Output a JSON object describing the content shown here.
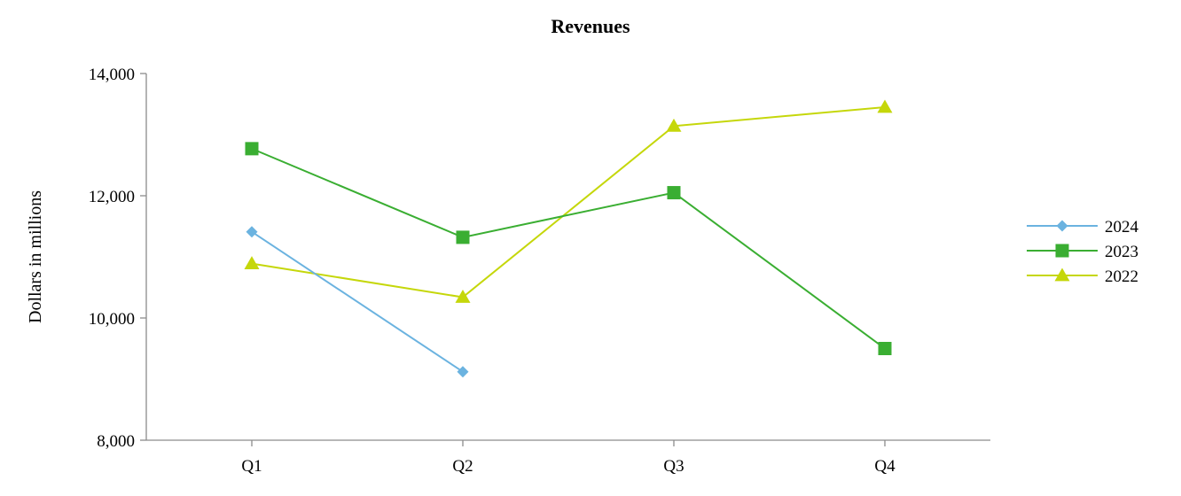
{
  "chart_data": {
    "type": "line",
    "title": "Revenues",
    "xlabel": "",
    "ylabel": "Dollars in millions",
    "categories": [
      "Q1",
      "Q2",
      "Q3",
      "Q4"
    ],
    "ylim": [
      8000,
      14000
    ],
    "yticks": [
      8000,
      10000,
      12000,
      14000
    ],
    "ytick_labels": [
      "8,000",
      "10,000",
      "12,000",
      "14,000"
    ],
    "grid": false,
    "legend_position": "right",
    "series": [
      {
        "name": "2024",
        "color": "#6bb3e0",
        "marker": "diamond",
        "values": [
          11410,
          9120,
          null,
          null
        ]
      },
      {
        "name": "2023",
        "color": "#3aae32",
        "marker": "square",
        "values": [
          12770,
          11320,
          12050,
          9500
        ]
      },
      {
        "name": "2022",
        "color": "#c5d70a",
        "marker": "triangle",
        "values": [
          10890,
          10340,
          13140,
          13450
        ]
      }
    ]
  }
}
